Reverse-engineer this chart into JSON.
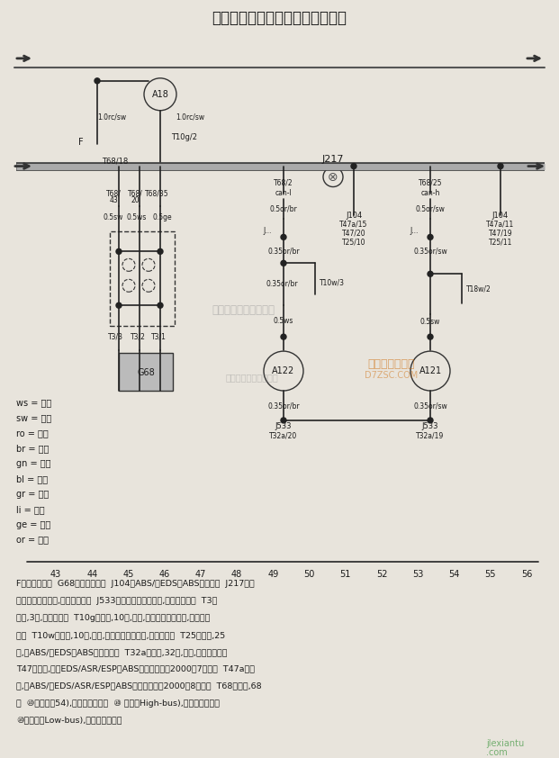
{
  "title": "自动变速器电控单元、车速传感器",
  "bg_color": "#e8e4dc",
  "text_color": "#1a1a1a",
  "legend_items": [
    "ws = 白色",
    "sw = 黑色",
    "ro = 红色",
    "br = 棕色",
    "gn = 绿色",
    "bl = 蓝色",
    "gr = 灰色",
    "li = 紫色",
    "ge = 黄色",
    "or = 橙色"
  ],
  "bottom_numbers": [
    "43",
    "44",
    "45",
    "46",
    "47",
    "48",
    "49",
    "50",
    "51",
    "52",
    "53",
    "54",
    "55",
    "56"
  ],
  "bottom_text_lines": [
    "F－制动灯开关  G68－车速传感器  J104－ABS/带EDS的ABS电控单元  J217－自",
    "动变速器电控单元,在流水槽中部  J533－数据总线诊断接口,在组合仪表内  T3－",
    "插头,3孔,在变速器上  T10g－插头,10孔,灰色,在插头保护壳体内,在流水槽",
    "左侧  T10w－插头,10孔,白色,在插头保护壳体内,流水槽左侧  T25－插头,25",
    "孔,在ABS/带EDS的ABS电控单元上  T32a－插头,32孔,绿色,在组合仪表上",
    "T47－插头,在带EDS/ASR/ESP的ABS电控单元上（2000年7月前）  T47a－插",
    "头,在ABS/带EDS/ASR/ESP的ABS电控单元上（2000年8月后）  T68－插头,68",
    "孔  ⑩－连接（54),在仪表板线束内  ⑩ 连接（High-bus),在仪表板线束内",
    "⑩－连接（Low-bus),在仪表板线束内"
  ]
}
